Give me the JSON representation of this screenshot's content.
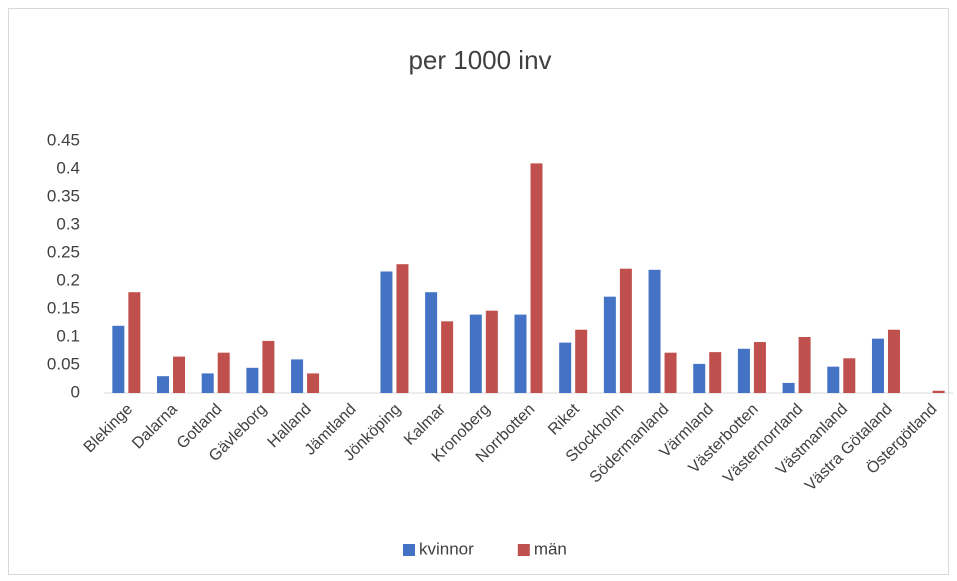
{
  "chart_data": {
    "type": "bar",
    "title": "per 1000 inv",
    "categories": [
      "Blekinge",
      "Dalarna",
      "Gotland",
      "Gävleborg",
      "Halland",
      "Jämtland",
      "Jönköping",
      "Kalmar",
      "Kronoberg",
      "Norrbotten",
      "Riket",
      "Stockholm",
      "Södermanland",
      "Värmland",
      "Västerbotten",
      "Västernorrland",
      "Västmanland",
      "Västra Götaland",
      "Östergötland"
    ],
    "series": [
      {
        "name": "kvinnor",
        "color": "#4472c4",
        "values": [
          0.12,
          0.03,
          0.035,
          0.045,
          0.06,
          0,
          0.217,
          0.18,
          0.14,
          0.14,
          0.09,
          0.172,
          0.22,
          0.052,
          0.079,
          0.018,
          0.047,
          0.097,
          0
        ]
      },
      {
        "name": "män",
        "color": "#c0504d",
        "values": [
          0.18,
          0.065,
          0.072,
          0.093,
          0.035,
          0,
          0.23,
          0.128,
          0.147,
          0.41,
          0.113,
          0.222,
          0.072,
          0.073,
          0.091,
          0.1,
          0.062,
          0.113,
          0.004
        ]
      }
    ],
    "ylim": [
      0,
      0.45
    ],
    "yticks": [
      0,
      0.05,
      0.1,
      0.15,
      0.2,
      0.25,
      0.3,
      0.35,
      0.4,
      0.45
    ],
    "grid": false,
    "legend": "bottom"
  }
}
